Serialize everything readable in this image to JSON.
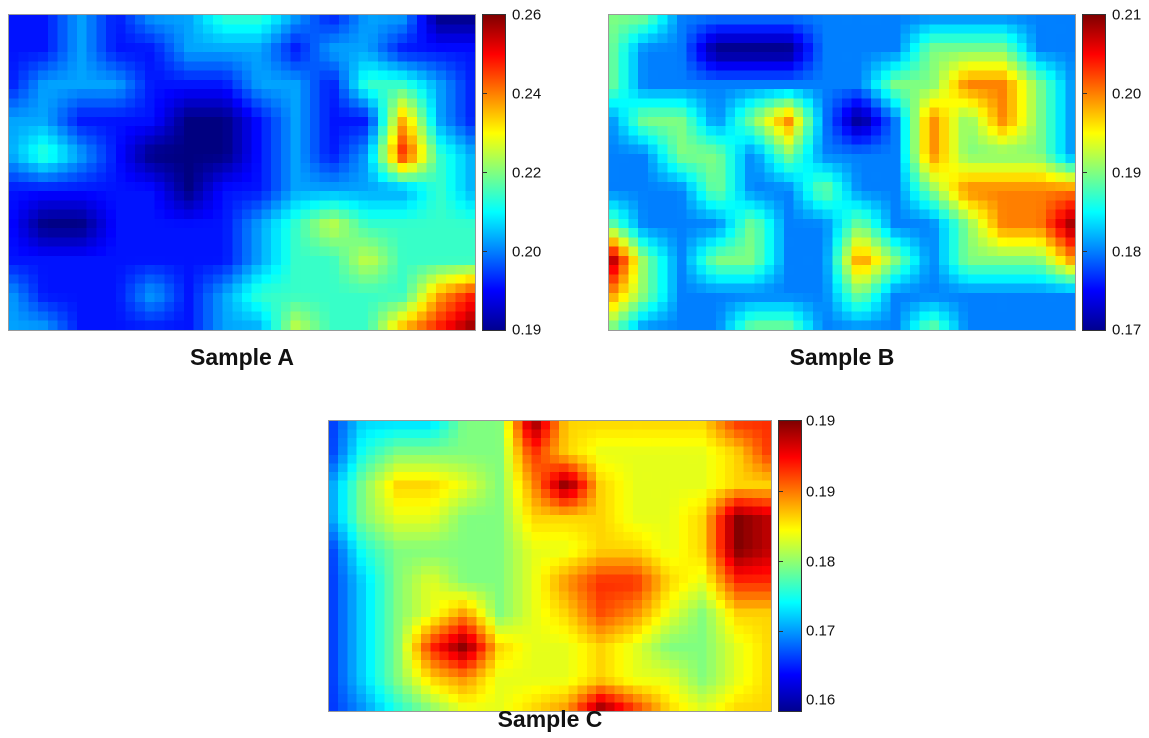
{
  "chart_data": [
    {
      "type": "heatmap",
      "title": "Sample A",
      "colormap": "jet",
      "colorbar": {
        "min": 0.19,
        "max": 0.26,
        "ticks": [
          "0.26",
          "0.24",
          "0.22",
          "0.20",
          "0.19"
        ],
        "tick_values": [
          0.26,
          0.24,
          0.22,
          0.2,
          0.19
        ]
      },
      "grid": {
        "cols": 14,
        "rows": 10
      },
      "values": [
        [
          0.2,
          0.2,
          0.21,
          0.2,
          0.21,
          0.21,
          0.22,
          0.22,
          0.21,
          0.2,
          0.21,
          0.21,
          0.19,
          0.19
        ],
        [
          0.2,
          0.2,
          0.21,
          0.2,
          0.2,
          0.21,
          0.21,
          0.21,
          0.2,
          0.21,
          0.21,
          0.2,
          0.2,
          0.2
        ],
        [
          0.2,
          0.21,
          0.21,
          0.21,
          0.2,
          0.2,
          0.2,
          0.21,
          0.21,
          0.2,
          0.22,
          0.22,
          0.21,
          0.2
        ],
        [
          0.21,
          0.21,
          0.2,
          0.2,
          0.2,
          0.19,
          0.19,
          0.2,
          0.21,
          0.2,
          0.2,
          0.24,
          0.21,
          0.2
        ],
        [
          0.21,
          0.22,
          0.21,
          0.2,
          0.19,
          0.19,
          0.19,
          0.2,
          0.21,
          0.2,
          0.21,
          0.25,
          0.22,
          0.21
        ],
        [
          0.2,
          0.2,
          0.2,
          0.2,
          0.2,
          0.19,
          0.2,
          0.2,
          0.21,
          0.21,
          0.21,
          0.21,
          0.22,
          0.21
        ],
        [
          0.2,
          0.19,
          0.19,
          0.2,
          0.2,
          0.2,
          0.2,
          0.21,
          0.22,
          0.23,
          0.22,
          0.22,
          0.22,
          0.22
        ],
        [
          0.2,
          0.2,
          0.2,
          0.2,
          0.2,
          0.2,
          0.2,
          0.21,
          0.22,
          0.22,
          0.23,
          0.22,
          0.22,
          0.22
        ],
        [
          0.21,
          0.2,
          0.2,
          0.2,
          0.21,
          0.2,
          0.21,
          0.22,
          0.22,
          0.22,
          0.22,
          0.22,
          0.24,
          0.25
        ],
        [
          0.21,
          0.21,
          0.2,
          0.2,
          0.2,
          0.2,
          0.21,
          0.21,
          0.23,
          0.22,
          0.22,
          0.24,
          0.25,
          0.26
        ]
      ]
    },
    {
      "type": "heatmap",
      "title": "Sample B",
      "colormap": "jet",
      "colorbar": {
        "min": 0.17,
        "max": 0.21,
        "ticks": [
          "0.21",
          "0.20",
          "0.19",
          "0.18",
          "0.17"
        ],
        "tick_values": [
          0.21,
          0.2,
          0.19,
          0.18,
          0.17
        ]
      },
      "grid": {
        "cols": 14,
        "rows": 10
      },
      "values": [
        [
          0.19,
          0.19,
          0.18,
          0.18,
          0.18,
          0.18,
          0.18,
          0.18,
          0.18,
          0.18,
          0.18,
          0.18,
          0.18,
          0.18
        ],
        [
          0.19,
          0.18,
          0.18,
          0.17,
          0.17,
          0.17,
          0.18,
          0.18,
          0.18,
          0.19,
          0.19,
          0.19,
          0.18,
          0.18
        ],
        [
          0.19,
          0.18,
          0.18,
          0.18,
          0.18,
          0.18,
          0.18,
          0.18,
          0.19,
          0.19,
          0.2,
          0.2,
          0.19,
          0.18
        ],
        [
          0.18,
          0.19,
          0.19,
          0.18,
          0.19,
          0.2,
          0.18,
          0.17,
          0.18,
          0.2,
          0.19,
          0.2,
          0.19,
          0.18
        ],
        [
          0.18,
          0.18,
          0.19,
          0.19,
          0.18,
          0.19,
          0.18,
          0.18,
          0.18,
          0.2,
          0.19,
          0.19,
          0.19,
          0.18
        ],
        [
          0.18,
          0.18,
          0.18,
          0.19,
          0.18,
          0.18,
          0.19,
          0.18,
          0.18,
          0.19,
          0.2,
          0.2,
          0.2,
          0.2
        ],
        [
          0.19,
          0.18,
          0.18,
          0.18,
          0.19,
          0.18,
          0.18,
          0.19,
          0.18,
          0.18,
          0.19,
          0.2,
          0.2,
          0.21
        ],
        [
          0.21,
          0.19,
          0.18,
          0.19,
          0.19,
          0.18,
          0.18,
          0.2,
          0.19,
          0.18,
          0.19,
          0.19,
          0.19,
          0.2
        ],
        [
          0.2,
          0.19,
          0.18,
          0.18,
          0.18,
          0.18,
          0.18,
          0.19,
          0.18,
          0.18,
          0.18,
          0.18,
          0.18,
          0.18
        ],
        [
          0.19,
          0.18,
          0.18,
          0.18,
          0.19,
          0.19,
          0.18,
          0.18,
          0.18,
          0.19,
          0.18,
          0.18,
          0.18,
          0.18
        ]
      ]
    },
    {
      "type": "heatmap",
      "title": "Sample C",
      "colormap": "jet",
      "colorbar": {
        "min": 0.16,
        "max": 0.19,
        "ticks": [
          "0.19",
          "0.19",
          "0.18",
          "0.17",
          "0.16"
        ],
        "tick_values": [
          0.19,
          0.185,
          0.18,
          0.17,
          0.16
        ]
      },
      "grid": {
        "cols": 14,
        "rows": 10
      },
      "values": [
        [
          0.165,
          0.17,
          0.17,
          0.17,
          0.175,
          0.175,
          0.19,
          0.18,
          0.18,
          0.18,
          0.18,
          0.18,
          0.185,
          0.185
        ],
        [
          0.165,
          0.172,
          0.175,
          0.175,
          0.175,
          0.175,
          0.185,
          0.18,
          0.178,
          0.178,
          0.178,
          0.178,
          0.18,
          0.185
        ],
        [
          0.168,
          0.175,
          0.18,
          0.18,
          0.178,
          0.175,
          0.182,
          0.19,
          0.18,
          0.178,
          0.178,
          0.178,
          0.18,
          0.18
        ],
        [
          0.168,
          0.175,
          0.178,
          0.178,
          0.175,
          0.175,
          0.18,
          0.18,
          0.18,
          0.178,
          0.178,
          0.18,
          0.19,
          0.188
        ],
        [
          0.165,
          0.172,
          0.175,
          0.175,
          0.175,
          0.175,
          0.178,
          0.178,
          0.18,
          0.18,
          0.178,
          0.18,
          0.19,
          0.188
        ],
        [
          0.165,
          0.17,
          0.175,
          0.178,
          0.175,
          0.175,
          0.178,
          0.182,
          0.185,
          0.185,
          0.18,
          0.178,
          0.185,
          0.185
        ],
        [
          0.165,
          0.17,
          0.175,
          0.178,
          0.182,
          0.175,
          0.178,
          0.18,
          0.184,
          0.182,
          0.178,
          0.175,
          0.18,
          0.18
        ],
        [
          0.165,
          0.17,
          0.175,
          0.185,
          0.19,
          0.18,
          0.178,
          0.178,
          0.18,
          0.178,
          0.175,
          0.175,
          0.178,
          0.18
        ],
        [
          0.165,
          0.17,
          0.175,
          0.18,
          0.182,
          0.178,
          0.178,
          0.178,
          0.18,
          0.178,
          0.178,
          0.175,
          0.178,
          0.18
        ],
        [
          0.165,
          0.168,
          0.172,
          0.175,
          0.178,
          0.178,
          0.18,
          0.182,
          0.19,
          0.185,
          0.18,
          0.178,
          0.18,
          0.18
        ]
      ]
    }
  ]
}
